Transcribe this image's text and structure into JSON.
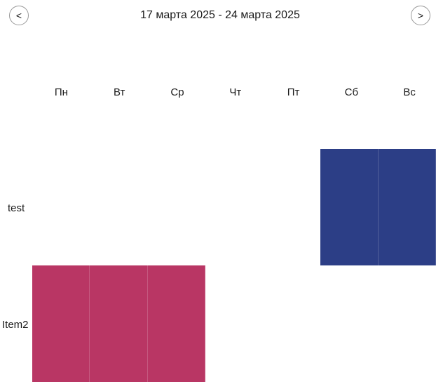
{
  "navigation": {
    "prev_label": "<",
    "next_label": ">",
    "range_title": "17 марта 2025 - 24 марта 2025"
  },
  "days": [
    "Пн",
    "Вт",
    "Ср",
    "Чт",
    "Пт",
    "Сб",
    "Вс"
  ],
  "rows": [
    {
      "label": "test",
      "color": "#2c3e86",
      "filled_day_indexes": [
        5,
        6
      ]
    },
    {
      "label": "Item2",
      "color": "#b93664",
      "filled_day_indexes": [
        0,
        1,
        2
      ]
    }
  ]
}
